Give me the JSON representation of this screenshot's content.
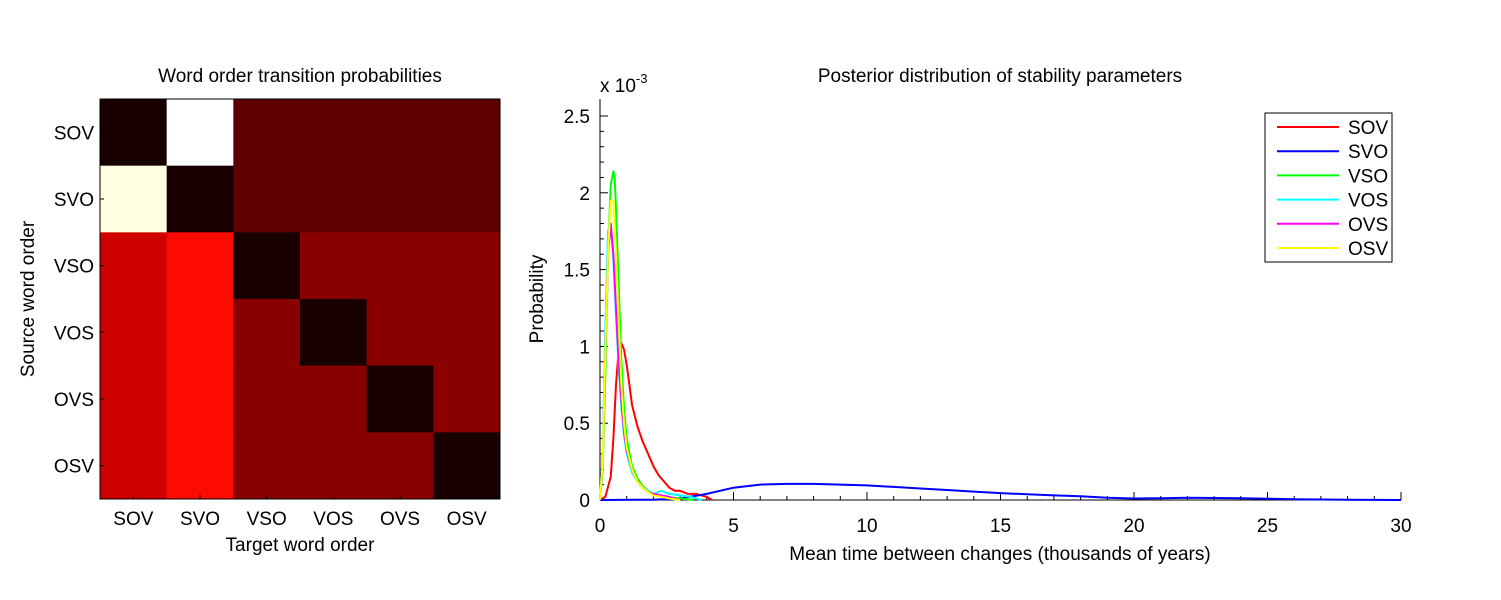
{
  "chart_data": [
    {
      "type": "heatmap",
      "title": "Word order transition probabilities",
      "xlabel": "Target word order",
      "ylabel": "Source word order",
      "row_labels": [
        "SOV",
        "SVO",
        "VSO",
        "VOS",
        "OVS",
        "OSV"
      ],
      "col_labels": [
        "SOV",
        "SVO",
        "VSO",
        "VOS",
        "OVS",
        "OSV"
      ],
      "colormap": "hot",
      "values": [
        [
          0.02,
          1.0,
          0.12,
          0.12,
          0.12,
          0.12
        ],
        [
          0.97,
          0.02,
          0.12,
          0.12,
          0.12,
          0.12
        ],
        [
          0.28,
          0.38,
          0.02,
          0.18,
          0.18,
          0.18
        ],
        [
          0.28,
          0.38,
          0.18,
          0.02,
          0.18,
          0.18
        ],
        [
          0.28,
          0.38,
          0.18,
          0.18,
          0.02,
          0.18
        ],
        [
          0.28,
          0.38,
          0.18,
          0.18,
          0.18,
          0.02
        ]
      ]
    },
    {
      "type": "line",
      "title": "Posterior distribution of stability parameters",
      "xlabel": "Mean time between changes (thousands of years)",
      "ylabel": "Probability",
      "y_scale_label": "x 10",
      "y_scale_exponent": "-3",
      "xlim": [
        0,
        30
      ],
      "ylim": [
        0,
        2.6
      ],
      "xticks": [
        "0",
        "5",
        "10",
        "15",
        "20",
        "25",
        "30"
      ],
      "yticks": [
        "0",
        "0.5",
        "1",
        "1.5",
        "2",
        "2.5"
      ],
      "legend_position": "top-right",
      "series": [
        {
          "name": "SOV",
          "color": "#ff0000",
          "x": [
            0,
            0.2,
            0.4,
            0.5,
            0.6,
            0.7,
            0.8,
            0.9,
            1.0,
            1.1,
            1.2,
            1.4,
            1.6,
            1.8,
            2.0,
            2.2,
            2.4,
            2.6,
            2.8,
            3.0,
            3.3,
            3.6,
            4.0,
            4.2
          ],
          "y": [
            0,
            0.02,
            0.15,
            0.4,
            0.75,
            0.98,
            1.02,
            0.98,
            0.88,
            0.75,
            0.62,
            0.48,
            0.38,
            0.3,
            0.22,
            0.16,
            0.12,
            0.08,
            0.06,
            0.06,
            0.04,
            0.04,
            0.02,
            0
          ]
        },
        {
          "name": "SVO",
          "color": "#0000ff",
          "x": [
            0,
            2,
            3,
            4,
            5,
            6,
            7,
            8,
            9,
            10,
            11,
            12,
            13,
            14,
            15,
            16,
            17,
            18,
            19,
            20,
            21,
            22,
            24,
            26,
            28,
            30
          ],
          "y": [
            0,
            0.002,
            0.01,
            0.04,
            0.08,
            0.1,
            0.105,
            0.105,
            0.1,
            0.095,
            0.085,
            0.075,
            0.065,
            0.055,
            0.045,
            0.037,
            0.03,
            0.025,
            0.015,
            0.01,
            0.012,
            0.015,
            0.012,
            0.005,
            0.002,
            0
          ]
        },
        {
          "name": "VSO",
          "color": "#00ff00",
          "x": [
            0,
            0.1,
            0.2,
            0.3,
            0.4,
            0.5,
            0.55,
            0.6,
            0.7,
            0.8,
            0.9,
            1.0,
            1.2,
            1.4,
            1.6,
            1.8,
            2.0,
            2.5,
            3.0,
            3.5
          ],
          "y": [
            0,
            0.2,
            0.8,
            1.6,
            2.05,
            2.14,
            2.1,
            1.9,
            1.4,
            0.9,
            0.6,
            0.4,
            0.22,
            0.14,
            0.09,
            0.06,
            0.04,
            0.02,
            0.01,
            0
          ]
        },
        {
          "name": "VOS",
          "color": "#00ffff",
          "x": [
            0,
            0.1,
            0.2,
            0.3,
            0.4,
            0.5,
            0.6,
            0.7,
            0.8,
            0.9,
            1.0,
            1.2,
            1.4,
            1.6,
            1.8,
            2.0,
            2.3,
            2.6,
            3.0,
            3.4,
            3.8
          ],
          "y": [
            0,
            0.3,
            1.1,
            1.75,
            1.8,
            1.55,
            1.2,
            0.85,
            0.6,
            0.42,
            0.3,
            0.18,
            0.12,
            0.08,
            0.06,
            0.04,
            0.06,
            0.04,
            0.03,
            0.02,
            0
          ]
        },
        {
          "name": "OVS",
          "color": "#ff00ff",
          "x": [
            0,
            0.1,
            0.2,
            0.3,
            0.4,
            0.5,
            0.6,
            0.7,
            0.8,
            0.9,
            1.0,
            1.2,
            1.4,
            1.6,
            1.8,
            2.0,
            2.3,
            2.6,
            3.0
          ],
          "y": [
            0,
            0.25,
            0.95,
            1.6,
            1.8,
            1.6,
            1.25,
            0.9,
            0.65,
            0.45,
            0.32,
            0.2,
            0.12,
            0.08,
            0.05,
            0.04,
            0.03,
            0.02,
            0
          ]
        },
        {
          "name": "OSV",
          "color": "#ffff00",
          "x": [
            0,
            0.1,
            0.2,
            0.3,
            0.4,
            0.5,
            0.6,
            0.7,
            0.8,
            0.9,
            1.0,
            1.2,
            1.4,
            1.6,
            1.8,
            2.0,
            2.3,
            2.6,
            3.0
          ],
          "y": [
            0,
            0.25,
            0.95,
            1.6,
            1.95,
            1.95,
            1.6,
            1.15,
            0.75,
            0.5,
            0.34,
            0.2,
            0.12,
            0.08,
            0.05,
            0.03,
            0.02,
            0.01,
            0
          ]
        }
      ]
    }
  ]
}
